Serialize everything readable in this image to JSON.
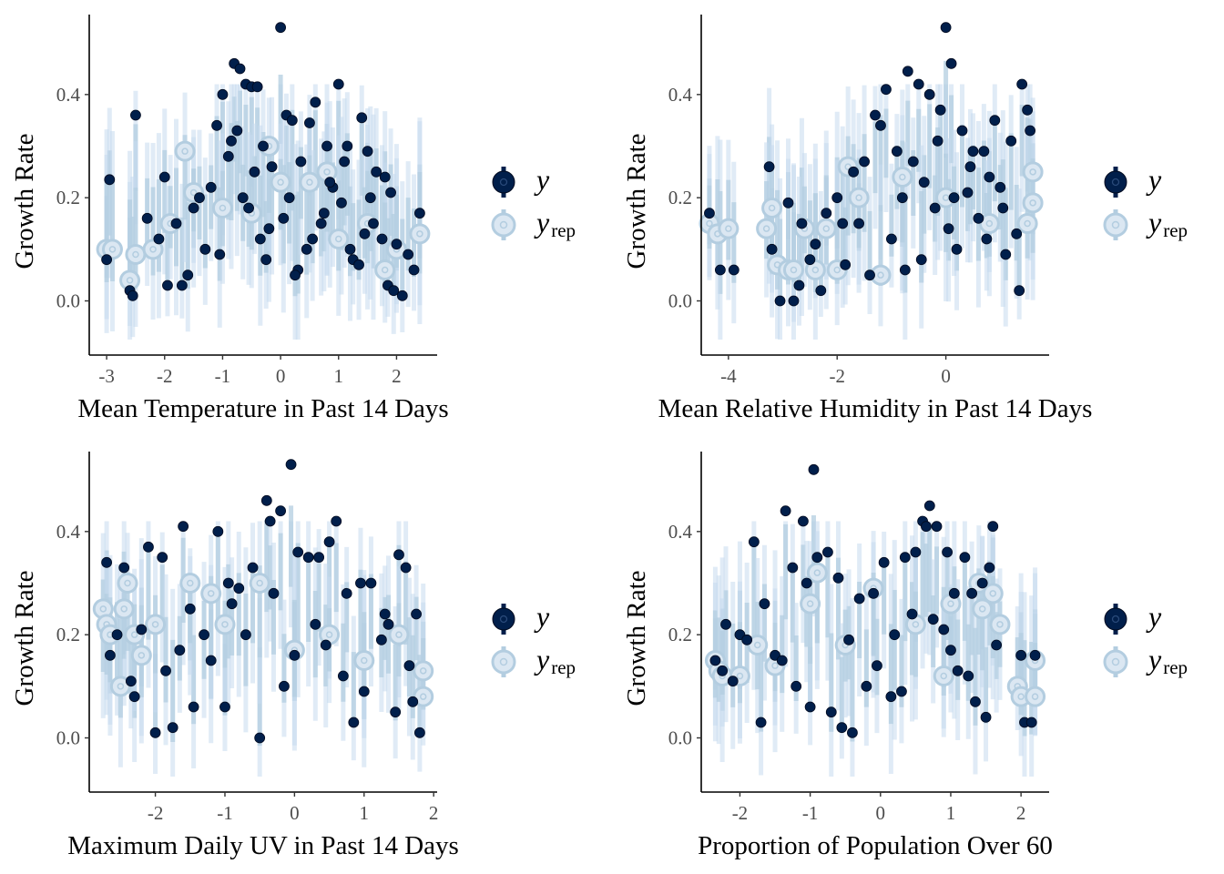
{
  "colors": {
    "y": "#011f4b",
    "y_outline": "#0b2a55",
    "yrep": "#b3cde0",
    "yrep_interval": "#c6dbef",
    "axis": "#000000"
  },
  "chart_data": [
    {
      "type": "scatter",
      "xlabel": "Mean Temperature in Past 14 Days",
      "ylabel": "Growth Rate",
      "xlim": [
        -3.3,
        2.7
      ],
      "ylim": [
        -0.105,
        0.555
      ],
      "xticks": [
        -3,
        -2,
        -1,
        0,
        1,
        2
      ],
      "xtick_labels": [
        "-3",
        "-2",
        "-1",
        "0",
        "1",
        "2"
      ],
      "yticks": [
        0,
        0.2,
        0.4
      ],
      "ytick_labels": [
        "0.0",
        "0.2",
        "0.4"
      ],
      "legend": {
        "position": "right",
        "entries": [
          "y",
          "y",
          "rep"
        ]
      },
      "series": [
        {
          "name": "y",
          "x": [
            -3.0,
            -2.95,
            -2.5,
            -2.6,
            -2.55,
            -2.0,
            -1.95,
            -1.8,
            -1.6,
            -1.5,
            -1.3,
            -1.1,
            -1.0,
            -0.8,
            -0.7,
            -0.6,
            -0.5,
            -0.4,
            -0.3,
            -0.2,
            0.0,
            0.1,
            0.2,
            0.3,
            0.5,
            0.6,
            0.8,
            0.9,
            1.0,
            1.1,
            1.2,
            1.4,
            1.5,
            1.6,
            1.8,
            1.9,
            2.0,
            2.1,
            2.3,
            2.4,
            -0.65,
            -0.55,
            -0.45,
            -0.35,
            -0.25,
            0.05,
            0.15,
            0.35,
            0.45,
            0.7,
            0.85,
            1.05,
            1.25,
            1.45,
            1.65,
            1.85,
            -1.2,
            -0.9,
            -0.75,
            -0.15,
            0.25,
            0.55,
            0.75,
            1.15,
            1.35,
            1.55,
            1.75,
            1.95,
            2.2,
            -2.3,
            -2.1,
            -1.7,
            -1.4,
            -1.05,
            -0.85
          ],
          "y": [
            0.08,
            0.235,
            0.36,
            0.02,
            0.01,
            0.24,
            0.03,
            0.15,
            0.05,
            0.18,
            0.1,
            0.34,
            0.4,
            0.46,
            0.45,
            0.42,
            0.415,
            0.415,
            0.3,
            0.14,
            0.53,
            0.36,
            0.35,
            0.06,
            0.345,
            0.385,
            0.3,
            0.22,
            0.42,
            0.27,
            0.1,
            0.355,
            0.29,
            0.15,
            0.24,
            0.21,
            0.11,
            0.01,
            0.06,
            0.17,
            0.2,
            0.18,
            0.25,
            0.12,
            0.08,
            0.16,
            0.2,
            0.27,
            0.1,
            0.15,
            0.23,
            0.19,
            0.08,
            0.13,
            0.25,
            0.03,
            0.22,
            0.28,
            0.33,
            0.26,
            0.05,
            0.12,
            0.17,
            0.3,
            0.07,
            0.2,
            0.12,
            0.02,
            0.09,
            0.16,
            0.12,
            0.03,
            0.2,
            0.09,
            0.31
          ]
        },
        {
          "name": "rep",
          "x": [
            -3.0,
            -2.9,
            -2.6,
            -2.5,
            -2.2,
            -1.65,
            -1.5,
            -1.0,
            -0.5,
            0.0,
            0.5,
            1.0,
            1.5,
            2.0,
            2.4,
            -1.9,
            -0.2,
            0.8,
            1.8
          ],
          "y": [
            0.1,
            0.1,
            0.04,
            0.09,
            0.1,
            0.29,
            0.21,
            0.18,
            0.17,
            0.23,
            0.23,
            0.12,
            0.15,
            0.1,
            0.13,
            0.15,
            0.3,
            0.25,
            0.06
          ]
        }
      ]
    },
    {
      "type": "scatter",
      "xlabel": "Mean Relative Humidity in Past 14 Days",
      "ylabel": "Growth Rate",
      "xlim": [
        -4.5,
        1.9
      ],
      "ylim": [
        -0.105,
        0.555
      ],
      "xticks": [
        -4,
        -2,
        0
      ],
      "xtick_labels": [
        "-4",
        "-2",
        "0"
      ],
      "yticks": [
        0,
        0.2,
        0.4
      ],
      "ytick_labels": [
        "0.0",
        "0.2",
        "0.4"
      ],
      "legend": {
        "position": "right",
        "entries": [
          "y",
          "y",
          "rep"
        ]
      },
      "series": [
        {
          "name": "y",
          "x": [
            -4.35,
            -4.15,
            -3.9,
            -3.25,
            -3.2,
            -3.05,
            -2.9,
            -2.8,
            -2.65,
            -2.5,
            -2.3,
            -2.2,
            -2.0,
            -1.9,
            -1.7,
            -1.5,
            -1.3,
            -1.2,
            -1.1,
            -0.9,
            -0.7,
            -0.5,
            -0.3,
            -0.1,
            0.0,
            0.1,
            0.3,
            0.5,
            0.7,
            0.9,
            1.0,
            1.2,
            1.4,
            1.5,
            1.55,
            -1.6,
            -1.4,
            -1.0,
            -0.8,
            -0.6,
            -0.4,
            -0.2,
            0.05,
            0.2,
            0.4,
            0.6,
            0.8,
            1.1,
            1.3,
            -0.75,
            -0.45,
            -0.15,
            0.15,
            0.45,
            0.75,
            1.05,
            1.35,
            -1.85,
            -2.4,
            -2.7
          ],
          "y": [
            0.17,
            0.06,
            0.06,
            0.26,
            0.1,
            0.0,
            0.19,
            0.0,
            0.15,
            0.08,
            0.02,
            0.17,
            0.2,
            0.15,
            0.25,
            0.27,
            0.36,
            0.34,
            0.41,
            0.29,
            0.445,
            0.42,
            0.4,
            0.37,
            0.53,
            0.46,
            0.33,
            0.29,
            0.29,
            0.35,
            0.22,
            0.31,
            0.42,
            0.37,
            0.33,
            0.15,
            0.05,
            0.12,
            0.2,
            0.27,
            0.23,
            0.18,
            0.14,
            0.1,
            0.21,
            0.16,
            0.24,
            0.09,
            0.13,
            0.06,
            0.08,
            0.31,
            0.2,
            0.26,
            0.12,
            0.18,
            0.02,
            0.07,
            0.11,
            0.03
          ]
        },
        {
          "name": "rep",
          "x": [
            -4.35,
            -4.2,
            -4.0,
            -3.3,
            -3.2,
            -3.1,
            -2.9,
            -2.8,
            -2.6,
            -2.4,
            -2.2,
            -2.0,
            -1.8,
            -1.6,
            -1.2,
            -0.8,
            0.0,
            0.8,
            1.5,
            1.6,
            1.6
          ],
          "y": [
            0.15,
            0.13,
            0.14,
            0.14,
            0.18,
            0.07,
            0.06,
            0.06,
            0.14,
            0.06,
            0.14,
            0.06,
            0.26,
            0.2,
            0.05,
            0.24,
            0.2,
            0.15,
            0.15,
            0.25,
            0.19
          ]
        }
      ]
    },
    {
      "type": "scatter",
      "xlabel": "Maximum Daily UV in Past 14 Days",
      "ylabel": "Growth Rate",
      "xlim": [
        -2.95,
        2.05
      ],
      "ylim": [
        -0.105,
        0.555
      ],
      "xticks": [
        -2,
        -1,
        0,
        1,
        2
      ],
      "xtick_labels": [
        "-2",
        "-1",
        "0",
        "1",
        "2"
      ],
      "yticks": [
        0,
        0.2,
        0.4
      ],
      "ytick_labels": [
        "0.0",
        "0.2",
        "0.4"
      ],
      "legend": {
        "position": "right",
        "entries": [
          "y",
          "y",
          "rep"
        ]
      },
      "series": [
        {
          "name": "y",
          "x": [
            -2.7,
            -2.65,
            -2.45,
            -2.3,
            -2.1,
            -2.0,
            -1.9,
            -1.75,
            -1.6,
            -1.45,
            -1.3,
            -1.1,
            -0.95,
            -0.8,
            -0.6,
            -0.5,
            -0.4,
            -0.35,
            -0.2,
            -0.05,
            0.05,
            0.2,
            0.35,
            0.5,
            0.6,
            0.75,
            0.95,
            1.1,
            1.3,
            1.5,
            1.6,
            1.75,
            1.8,
            -1.5,
            -1.2,
            -1.0,
            -0.7,
            -0.3,
            0.0,
            0.3,
            0.7,
            1.0,
            1.25,
            1.45,
            1.65,
            -2.2,
            -1.85,
            -0.9,
            -0.15,
            0.45,
            0.85,
            1.35,
            1.7,
            -2.55,
            -2.35,
            -1.65
          ],
          "y": [
            0.34,
            0.16,
            0.33,
            0.08,
            0.37,
            0.01,
            0.35,
            0.02,
            0.41,
            0.06,
            0.2,
            0.4,
            0.3,
            0.29,
            0.33,
            0.0,
            0.46,
            0.42,
            0.44,
            0.53,
            0.36,
            0.35,
            0.35,
            0.38,
            0.42,
            0.28,
            0.3,
            0.3,
            0.24,
            0.355,
            0.33,
            0.24,
            0.01,
            0.25,
            0.15,
            0.06,
            0.2,
            0.28,
            0.16,
            0.22,
            0.12,
            0.09,
            0.19,
            0.05,
            0.14,
            0.21,
            0.13,
            0.26,
            0.1,
            0.18,
            0.03,
            0.22,
            0.07,
            0.2,
            0.11,
            0.17
          ]
        },
        {
          "name": "rep",
          "x": [
            -2.75,
            -2.7,
            -2.65,
            -2.5,
            -2.45,
            -2.4,
            -2.3,
            -2.0,
            -1.5,
            -1.0,
            -0.5,
            0.0,
            0.5,
            1.0,
            1.5,
            1.85,
            1.85,
            -2.2,
            -1.2
          ],
          "y": [
            0.25,
            0.22,
            0.2,
            0.1,
            0.25,
            0.3,
            0.2,
            0.22,
            0.3,
            0.22,
            0.3,
            0.17,
            0.2,
            0.15,
            0.2,
            0.13,
            0.08,
            0.16,
            0.28
          ]
        }
      ]
    },
    {
      "type": "scatter",
      "xlabel": "Proportion of Population Over 60",
      "ylabel": "Growth Rate",
      "xlim": [
        -2.55,
        2.4
      ],
      "ylim": [
        -0.105,
        0.555
      ],
      "xticks": [
        -2,
        -1,
        0,
        1,
        2
      ],
      "xtick_labels": [
        "-2",
        "-1",
        "0",
        "1",
        "2"
      ],
      "yticks": [
        0,
        0.2,
        0.4
      ],
      "ytick_labels": [
        "0.0",
        "0.2",
        "0.4"
      ],
      "legend": {
        "position": "right",
        "entries": [
          "y",
          "y",
          "rep"
        ]
      },
      "series": [
        {
          "name": "y",
          "x": [
            -2.35,
            -2.2,
            -2.0,
            -1.8,
            -1.65,
            -1.5,
            -1.35,
            -1.25,
            -1.1,
            -1.05,
            -0.95,
            -0.9,
            -0.75,
            -0.6,
            -0.45,
            -0.3,
            -0.1,
            0.05,
            0.2,
            0.35,
            0.5,
            0.6,
            0.65,
            0.7,
            0.8,
            0.95,
            1.05,
            1.2,
            1.3,
            1.45,
            1.55,
            1.6,
            1.65,
            2.0,
            2.05,
            2.15,
            2.2,
            -2.1,
            -1.7,
            -1.4,
            -1.0,
            -0.55,
            -0.2,
            0.15,
            0.45,
            0.9,
            1.1,
            1.35,
            -1.9,
            -1.2,
            -0.7,
            -0.05,
            0.3,
            0.75,
            1.0,
            1.25,
            1.5,
            -2.25,
            -0.4
          ],
          "y": [
            0.15,
            0.22,
            0.2,
            0.38,
            0.26,
            0.16,
            0.44,
            0.33,
            0.42,
            0.3,
            0.52,
            0.35,
            0.36,
            0.31,
            0.19,
            0.27,
            0.28,
            0.34,
            0.2,
            0.35,
            0.36,
            0.42,
            0.41,
            0.45,
            0.41,
            0.36,
            0.28,
            0.35,
            0.28,
            0.3,
            0.33,
            0.41,
            0.18,
            0.16,
            0.03,
            0.03,
            0.16,
            0.11,
            0.03,
            0.15,
            0.06,
            0.02,
            0.1,
            0.08,
            0.24,
            0.21,
            0.13,
            0.07,
            0.19,
            0.1,
            0.05,
            0.14,
            0.09,
            0.23,
            0.17,
            0.12,
            0.04,
            0.13,
            0.01
          ]
        },
        {
          "name": "rep",
          "x": [
            -2.35,
            -2.3,
            -2.25,
            -2.0,
            -1.5,
            -1.0,
            -0.9,
            -0.5,
            -0.1,
            0.5,
            1.0,
            1.4,
            1.45,
            1.6,
            1.7,
            1.95,
            2.0,
            2.2,
            2.2,
            -1.75,
            0.9
          ],
          "y": [
            0.15,
            0.13,
            0.12,
            0.12,
            0.14,
            0.26,
            0.32,
            0.18,
            0.29,
            0.22,
            0.26,
            0.3,
            0.25,
            0.28,
            0.22,
            0.1,
            0.08,
            0.15,
            0.08,
            0.18,
            0.12
          ]
        }
      ]
    }
  ]
}
